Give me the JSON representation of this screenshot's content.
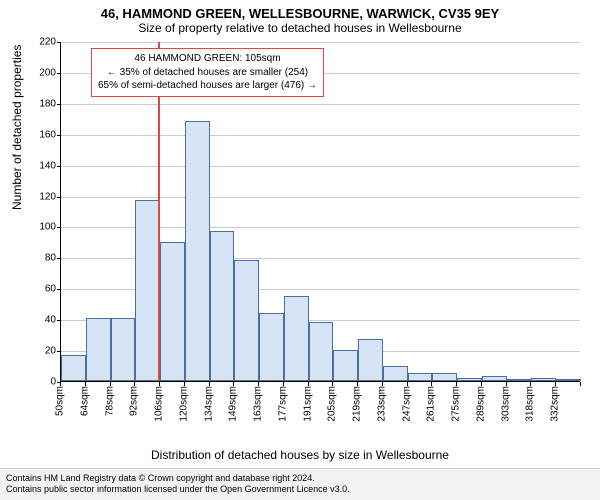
{
  "titles": {
    "main": "46, HAMMOND GREEN, WELLESBOURNE, WARWICK, CV35 9EY",
    "sub": "Size of property relative to detached houses in Wellesbourne"
  },
  "axes": {
    "ylabel": "Number of detached properties",
    "xlabel": "Distribution of detached houses by size in Wellesbourne",
    "ylim": [
      0,
      220
    ],
    "yticks": [
      0,
      20,
      40,
      60,
      80,
      100,
      120,
      140,
      160,
      180,
      200,
      220
    ],
    "xticks": [
      "50sqm",
      "64sqm",
      "78sqm",
      "92sqm",
      "106sqm",
      "120sqm",
      "134sqm",
      "149sqm",
      "163sqm",
      "177sqm",
      "191sqm",
      "205sqm",
      "219sqm",
      "233sqm",
      "247sqm",
      "261sqm",
      "275sqm",
      "289sqm",
      "303sqm",
      "318sqm",
      "332sqm"
    ],
    "grid_color": "#cccccc",
    "axis_color": "#000000",
    "label_fontsize": 12,
    "tick_fontsize": 10
  },
  "chart": {
    "type": "histogram",
    "bar_fill": "#d6e4f5",
    "bar_border": "#4a6fa5",
    "background_color": "#ffffff",
    "bar_gap_ratio": 0.0,
    "values": [
      17,
      41,
      41,
      117,
      90,
      168,
      97,
      78,
      44,
      55,
      38,
      20,
      27,
      10,
      5,
      5,
      2,
      3,
      1,
      2,
      1
    ]
  },
  "marker": {
    "position_sqm": 105,
    "color": "#d94a4a"
  },
  "annotation": {
    "border_color": "#d94a4a",
    "lines": {
      "l1": "46 HAMMOND GREEN: 105sqm",
      "l2": "← 35% of detached houses are smaller (254)",
      "l3": "65% of semi-detached houses are larger (476) →"
    }
  },
  "footer": {
    "line1": "Contains HM Land Registry data © Crown copyright and database right 2024.",
    "line2": "Contains public sector information licensed under the Open Government Licence v3.0."
  }
}
